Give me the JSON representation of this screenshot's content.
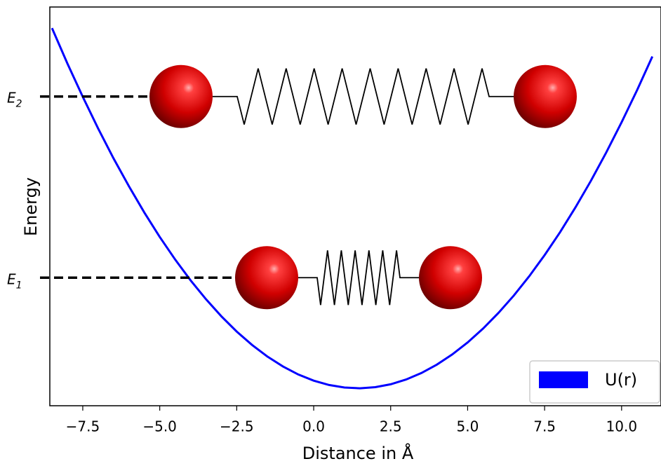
{
  "chart_data": {
    "type": "line",
    "xlabel": "Distance in Å",
    "ylabel": "Energy",
    "xlim": [
      -8.57,
      11.28
    ],
    "ylim": [
      -4.8,
      104.8
    ],
    "xticks": [
      {
        "value": -7.5,
        "label": "−7.5"
      },
      {
        "value": -5,
        "label": "−5.0"
      },
      {
        "value": -2.5,
        "label": "−2.5"
      },
      {
        "value": 0,
        "label": "0.0"
      },
      2.5,
      {
        "value": 5,
        "label": "5.0"
      },
      7.5,
      {
        "value": 10,
        "label": "10.0"
      }
    ],
    "legend": "lower right",
    "series": [
      {
        "name": "U(r)",
        "color": "#0000ff",
        "x": [
          -8.5,
          -8,
          -7.5,
          -7,
          -6.5,
          -6,
          -5.5,
          -5,
          -4.5,
          -4,
          -3.5,
          -3,
          -2.5,
          -2,
          -1.5,
          -1,
          -0.5,
          0,
          0.5,
          1,
          1.5,
          2,
          2.5,
          3,
          3.5,
          4,
          4.5,
          5,
          5.5,
          6,
          6.5,
          7,
          7.5,
          8,
          8.5,
          9,
          9.5,
          10,
          10.5,
          11
        ],
        "values": [
          99.0,
          89.3,
          80.1,
          71.4,
          63.2,
          55.5,
          48.3,
          41.6,
          35.4,
          29.7,
          24.5,
          19.8,
          15.6,
          11.9,
          8.7,
          6.0,
          3.8,
          2.1,
          0.9,
          0.2,
          0.0,
          0.3,
          1.1,
          2.4,
          4.2,
          6.5,
          9.3,
          12.6,
          16.4,
          20.7,
          25.5,
          30.8,
          36.6,
          42.9,
          49.7,
          57.0,
          64.8,
          73.1,
          81.9,
          91.2
        ]
      }
    ],
    "levels": [
      {
        "symbol": "E",
        "index": "2",
        "value": 80.2
      },
      {
        "symbol": "E",
        "index": "1",
        "value": 30.4
      }
    ]
  }
}
